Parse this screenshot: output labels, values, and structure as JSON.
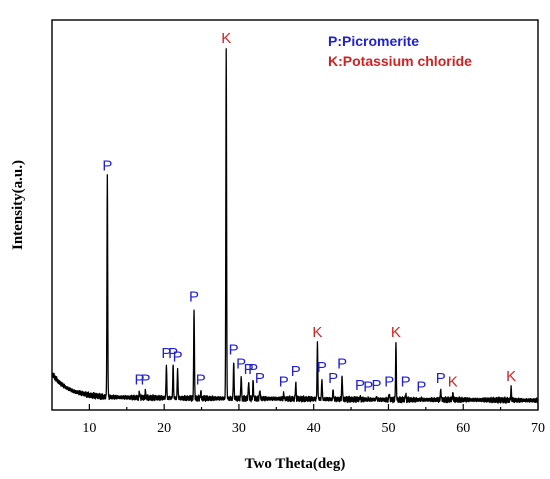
{
  "chart_data": {
    "type": "line",
    "xlabel": "Two Theta(deg)",
    "ylabel": "Intensity(a.u.)",
    "xlim": [
      5,
      70
    ],
    "xticks": [
      "10",
      "20",
      "30",
      "40",
      "50",
      "60",
      "70"
    ],
    "yticks_shown": false,
    "legend": {
      "position": "top-right",
      "entries": [
        {
          "text": "P:Picromerite",
          "color": "#1f1fd6"
        },
        {
          "text": "K:Potassium chloride",
          "color": "#d61f1f"
        }
      ]
    },
    "colors": {
      "line": "#000000",
      "P": "#1f1fd6",
      "K": "#d61f1f"
    },
    "baseline": [
      [
        5,
        0.085
      ],
      [
        6,
        0.06
      ],
      [
        7,
        0.045
      ],
      [
        8,
        0.035
      ],
      [
        10,
        0.025
      ],
      [
        12,
        0.02
      ],
      [
        16,
        0.018
      ],
      [
        25,
        0.016
      ],
      [
        35,
        0.015
      ],
      [
        50,
        0.012
      ],
      [
        60,
        0.012
      ],
      [
        70,
        0.01
      ]
    ],
    "peaks": [
      {
        "x": 12.4,
        "y": 0.64,
        "label": "P"
      },
      {
        "x": 16.7,
        "y": 0.035,
        "label": "P"
      },
      {
        "x": 17.5,
        "y": 0.035,
        "label": "P"
      },
      {
        "x": 20.3,
        "y": 0.11,
        "label": "P"
      },
      {
        "x": 21.2,
        "y": 0.11,
        "label": "P"
      },
      {
        "x": 21.8,
        "y": 0.1,
        "label": "P"
      },
      {
        "x": 24.0,
        "y": 0.27,
        "label": "P"
      },
      {
        "x": 24.9,
        "y": 0.035,
        "label": "P"
      },
      {
        "x": 28.3,
        "y": 1.0,
        "label": "K"
      },
      {
        "x": 29.3,
        "y": 0.12,
        "label": "P"
      },
      {
        "x": 30.3,
        "y": 0.08,
        "label": "P"
      },
      {
        "x": 31.3,
        "y": 0.065,
        "label": "P"
      },
      {
        "x": 31.9,
        "y": 0.065,
        "label": "P"
      },
      {
        "x": 32.8,
        "y": 0.04,
        "label": "P"
      },
      {
        "x": 36.0,
        "y": 0.03,
        "label": "P"
      },
      {
        "x": 37.6,
        "y": 0.06,
        "label": "P"
      },
      {
        "x": 40.5,
        "y": 0.17,
        "label": "K"
      },
      {
        "x": 41.1,
        "y": 0.07,
        "label": "P"
      },
      {
        "x": 42.6,
        "y": 0.04,
        "label": "P"
      },
      {
        "x": 43.8,
        "y": 0.08,
        "label": "P"
      },
      {
        "x": 46.2,
        "y": 0.02,
        "label": "P"
      },
      {
        "x": 47.3,
        "y": 0.015,
        "label": "P"
      },
      {
        "x": 48.4,
        "y": 0.02,
        "label": "P"
      },
      {
        "x": 50.1,
        "y": 0.03,
        "label": "P"
      },
      {
        "x": 51.0,
        "y": 0.17,
        "label": "K"
      },
      {
        "x": 52.3,
        "y": 0.03,
        "label": "P"
      },
      {
        "x": 54.4,
        "y": 0.015,
        "label": "P"
      },
      {
        "x": 57.0,
        "y": 0.04,
        "label": "P"
      },
      {
        "x": 58.6,
        "y": 0.03,
        "label": "K"
      },
      {
        "x": 66.4,
        "y": 0.045,
        "label": "K"
      }
    ]
  }
}
